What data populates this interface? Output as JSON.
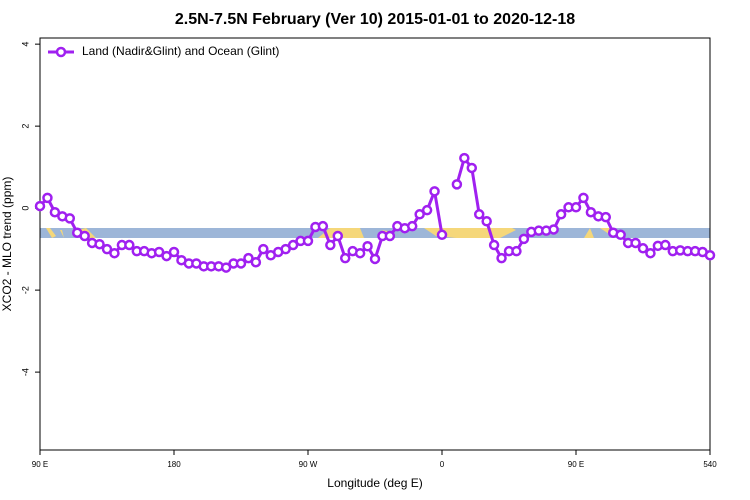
{
  "chart_data": {
    "type": "line",
    "title": "2.5N-7.5N February (Ver 10)   2015-01-01 to 2020-12-18",
    "x_label": "Longitude (deg E)",
    "y_label": "XCO2 - MLO trend (ppm)",
    "x": [
      90,
      95,
      100,
      105,
      110,
      115,
      120,
      125,
      130,
      135,
      140,
      145,
      150,
      155,
      160,
      165,
      170,
      175,
      180,
      185,
      190,
      195,
      200,
      205,
      210,
      215,
      220,
      225,
      230,
      235,
      240,
      245,
      250,
      255,
      260,
      265,
      270,
      275,
      280,
      285,
      290,
      295,
      300,
      305,
      310,
      315,
      320,
      325,
      330,
      335,
      340,
      345,
      350,
      355,
      360,
      365,
      370,
      375,
      380,
      385,
      390,
      395,
      400,
      405,
      410,
      415,
      420,
      425,
      430,
      435,
      440,
      445,
      450,
      455,
      460,
      465,
      470,
      475,
      480,
      485,
      490,
      495,
      500,
      505,
      510,
      515,
      520,
      525,
      530,
      535,
      540
    ],
    "series": [
      {
        "name": "Land (Nadir&Glint) and Ocean (Glint)",
        "color": "#a020f0",
        "values": [
          0.05,
          0.25,
          -0.1,
          -0.2,
          -0.25,
          -0.6,
          -0.68,
          -0.85,
          -0.88,
          -1.0,
          -1.1,
          -0.9,
          -0.9,
          -1.05,
          -1.05,
          -1.1,
          -1.07,
          -1.17,
          -1.07,
          -1.27,
          -1.35,
          -1.35,
          -1.42,
          -1.42,
          -1.42,
          -1.45,
          -1.35,
          -1.35,
          -1.22,
          -1.32,
          -1.0,
          -1.15,
          -1.07,
          -1.0,
          -0.9,
          -0.8,
          -0.8,
          -0.46,
          -0.44,
          -0.9,
          -0.68,
          -1.22,
          -1.05,
          -1.1,
          -0.93,
          -1.24,
          -0.68,
          -0.68,
          -0.44,
          -0.49,
          -0.44,
          -0.15,
          -0.05,
          0.41,
          -0.65,
          null,
          0.58,
          1.22,
          0.98,
          -0.15,
          -0.32,
          -0.9,
          -1.22,
          -1.05,
          -1.05,
          -0.75,
          -0.58,
          -0.55,
          -0.55,
          -0.52,
          -0.15,
          0.02,
          0.02,
          0.25,
          -0.1,
          -0.2,
          -0.22,
          -0.6,
          -0.65,
          -0.85,
          -0.85,
          -0.98,
          -1.1,
          -0.92,
          -0.9,
          -1.05,
          -1.03,
          -1.05,
          -1.05,
          -1.07,
          -1.15
        ]
      }
    ],
    "xlim": [
      90,
      540
    ],
    "xticks": [
      {
        "value": 90,
        "label": "90 E"
      },
      180,
      {
        "value": 270,
        "label": "90 W"
      },
      {
        "value": 360,
        "label": "0"
      },
      {
        "value": 450,
        "label": "90 E"
      },
      540
    ],
    "ylim": [
      -5.9,
      4.15
    ],
    "yticks": [
      -4,
      -2,
      0,
      2,
      4
    ],
    "legend": "top-left"
  }
}
